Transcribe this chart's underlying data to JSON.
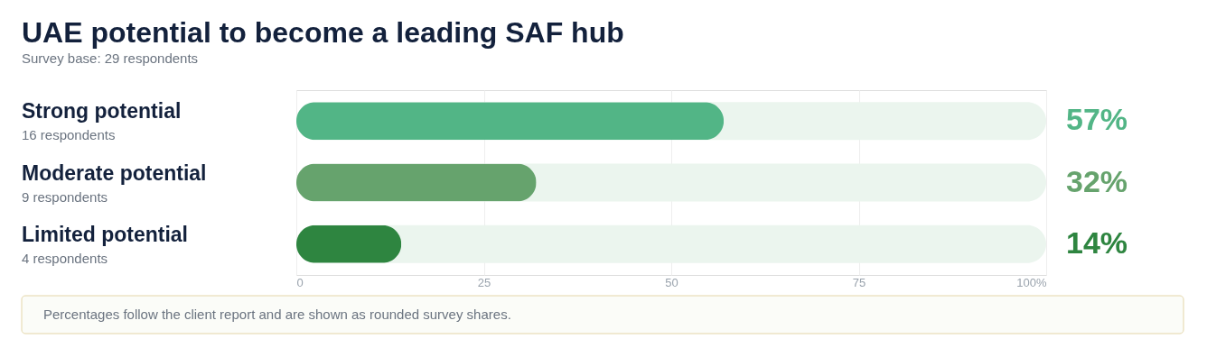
{
  "chart_data": {
    "type": "bar",
    "orientation": "horizontal",
    "title": "UAE potential to become a leading SAF hub",
    "subtitle": "Survey base: 29 respondents",
    "categories": [
      "Strong potential",
      "Moderate potential",
      "Limited potential"
    ],
    "values": [
      57,
      32,
      14
    ],
    "colors": [
      "#52b586",
      "#66a36d",
      "#2e8540"
    ],
    "value_labels": [
      "57%",
      "32%",
      "14%"
    ],
    "xlim": [
      0,
      100
    ],
    "xticks": [
      0,
      25,
      50,
      75,
      {
        "value": 100,
        "label": "100%"
      }
    ],
    "grid": "x",
    "legend": false,
    "annotations": [
      "16 respondents",
      "9 respondents",
      "4 respondents",
      "Percentages follow the client report and are shown as rounded survey shares."
    ]
  }
}
